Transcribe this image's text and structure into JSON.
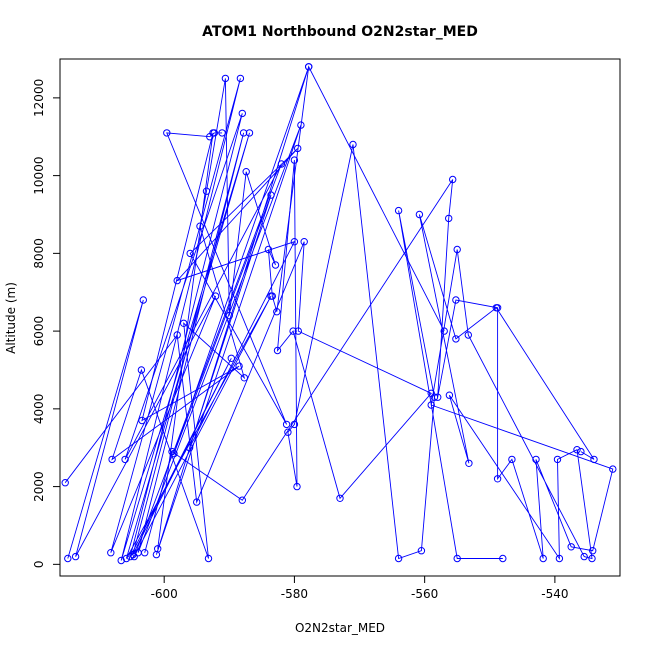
{
  "chart_data": {
    "type": "line",
    "title": "ATOM1 Northbound O2N2star_MED",
    "xlabel": "O2N2star_MED",
    "ylabel": "Altitude (m)",
    "xlim": [
      -616,
      -530
    ],
    "ylim": [
      -300,
      13000
    ],
    "x_ticks": [
      -600,
      -580,
      -560,
      -540
    ],
    "x_tick_labels": [
      "-600",
      "-580",
      "-560",
      "-540"
    ],
    "y_ticks": [
      0,
      2000,
      4000,
      6000,
      8000,
      10000,
      12000
    ],
    "y_tick_labels": [
      "0",
      "2000",
      "4000",
      "6000",
      "8000",
      "10000",
      "12000"
    ],
    "grid": false,
    "color": "#0000ff",
    "marker": "open-circle",
    "series": [
      {
        "x": [
          -614.8,
          -603.2,
          -613.6,
          -592.1,
          -608.2,
          -588.3,
          -606.6,
          -586.9,
          -605.8,
          -583.6,
          -604.6,
          -582.0,
          -606.0,
          -588.0,
          -605.2,
          -589.7,
          -604.8,
          -587.8,
          -604.0,
          -579.0,
          -601.2,
          -577.8,
          -598.5,
          -583.6,
          -596.1,
          -580.0,
          -598.0,
          -579.5,
          -596.0,
          -581.2,
          -599.6,
          -593.0,
          -592.3,
          -591.1
        ],
        "y": [
          150,
          6800,
          200,
          6900,
          300,
          12500,
          100,
          11100,
          150,
          6900,
          200,
          10300,
          2700,
          11600,
          200,
          5300,
          250,
          11100,
          300,
          11300,
          250,
          12800,
          2850,
          9500,
          3000,
          8300,
          7300,
          10700,
          8000,
          3600,
          11100,
          11000,
          11100,
          11100
        ]
      },
      {
        "x": [
          -601.0,
          -592.5,
          -603.4,
          -588.5,
          -608.0,
          -603.5,
          -593.2,
          -597.0,
          -587.7,
          -594.5,
          -593.5,
          -590.6,
          -590.0,
          -587.4,
          -582.9,
          -584.0,
          -583.4,
          -582.7,
          -577.8,
          -557.0
        ],
        "y": [
          400,
          11100,
          3700,
          5100,
          2700,
          5000,
          150,
          6200,
          4800,
          8700,
          9600,
          12500,
          6400,
          10100,
          7700,
          8100,
          6900,
          6500,
          12800,
          6000
        ]
      },
      {
        "x": [
          -615.2,
          -598.0,
          -595.0,
          -578.5,
          -579.4,
          -559.0,
          -573.0,
          -580.2,
          -582.6,
          -580.0,
          -579.6,
          -581.0,
          -580.0,
          -571.0,
          -564.0,
          -560.5,
          -558.5,
          -564.0,
          -555.0,
          -548.0
        ],
        "y": [
          2100,
          5900,
          1600,
          8300,
          6000,
          4400,
          1700,
          6000,
          5500,
          10400,
          2000,
          3400,
          3600,
          10800,
          150,
          350,
          4300,
          9100,
          150,
          150
        ]
      },
      {
        "x": [
          -603.0,
          -598.8,
          -588.0,
          -555.7,
          -556.3,
          -558.0,
          -555.2,
          -548.8,
          -548.8,
          -546.6,
          -541.8,
          -542.9,
          -537.5,
          -534.2,
          -531.1,
          -559.0,
          -555.0,
          -553.3,
          -535.5,
          -534.3,
          -536.6,
          -539.6,
          -539.3,
          -556.2,
          -553.2,
          -560.8,
          -555.2,
          -549.0,
          -534.0,
          -536.0
        ],
        "y": [
          300,
          2900,
          1650,
          9900,
          8900,
          4300,
          6800,
          6600,
          2200,
          2700,
          150,
          2700,
          450,
          350,
          2450,
          4100,
          8100,
          5900,
          200,
          150,
          2950,
          2700,
          150,
          4350,
          2600,
          9000,
          5800,
          6600,
          2700,
          2900
        ]
      }
    ]
  }
}
